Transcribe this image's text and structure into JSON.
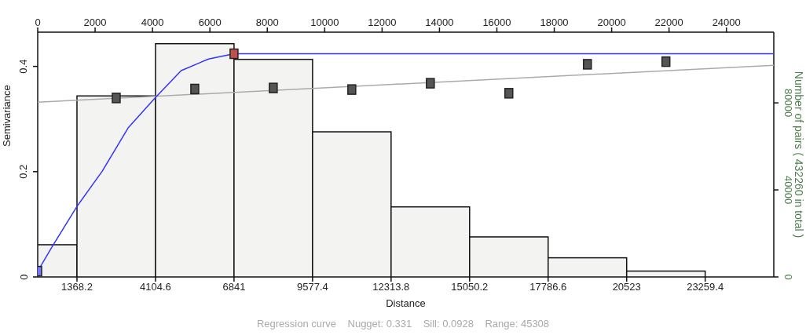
{
  "chart_data": {
    "type": "scatter",
    "xlabel": "Distance",
    "ylabel": "Semivariance",
    "y2label": "Number of pairs   ( 432260 in total )",
    "annotations": [
      "Regression curve    Nugget: 0.331    Sill: 0.0928    Range: 45308"
    ],
    "xlim": [
      0,
      25650
    ],
    "xticks": [
      1368.2,
      4104.6,
      6841,
      9577.4,
      12313.8,
      15050.2,
      17786.6,
      20523,
      23259.4
    ],
    "x2lim": [
      0,
      25650
    ],
    "x2ticks": [
      0,
      2000,
      4000,
      6000,
      8000,
      10000,
      12000,
      14000,
      16000,
      18000,
      20000,
      22000,
      24000
    ],
    "ylim": [
      0,
      0.465
    ],
    "yticks": [
      0,
      0.2,
      0.4
    ],
    "y2lim": [
      0,
      112500
    ],
    "y2ticks": [
      0,
      40000,
      80000
    ],
    "grid": false,
    "legend": false,
    "marker": "square",
    "series": [
      {
        "type": "histogram",
        "axis": "y2",
        "color": "#f3f4f2",
        "bins": [
          0,
          1368.2,
          4104.6,
          6841,
          9577.4,
          12313.8,
          15050.2,
          17786.6,
          20523,
          23259.4
        ],
        "values": [
          14800,
          83200,
          107200,
          100000,
          66700,
          32200,
          18400,
          8800,
          2700
        ]
      },
      {
        "type": "line",
        "color": "#aaaaaa",
        "x": [
          0,
          25650
        ],
        "values": [
          0.332,
          0.402
        ],
        "marker": "none"
      },
      {
        "type": "line",
        "color": "#3333ff",
        "x": [
          0,
          520,
          1368.2,
          2250,
          3150,
          4104.6,
          5000,
          5950,
          6841,
          25650
        ],
        "values": [
          0.011,
          0.059,
          0.134,
          0.201,
          0.283,
          0.341,
          0.392,
          0.414,
          0.424,
          0.424
        ],
        "marker": "none"
      },
      {
        "type": "scatter",
        "color": "#555555",
        "x": [
          2736.4,
          5472.8,
          8209.2,
          10945.6,
          13682,
          16418.4,
          19154.8,
          21891.2
        ],
        "values": [
          0.34,
          0.357,
          0.359,
          0.356,
          0.368,
          0.349,
          0.404,
          0.409
        ]
      },
      {
        "type": "scatter",
        "colors": [
          "#7777ff",
          "#c0504d"
        ],
        "x": [
          0,
          6841
        ],
        "values": [
          0.011,
          0.424
        ]
      }
    ]
  }
}
